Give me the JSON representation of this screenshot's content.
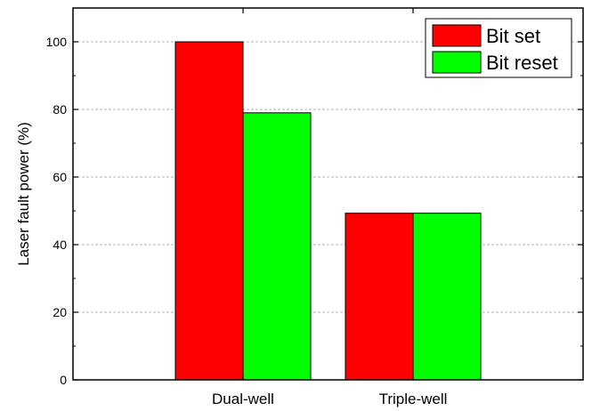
{
  "chart_data": {
    "type": "bar",
    "categories": [
      "Dual-well",
      "Triple-well"
    ],
    "series": [
      {
        "name": "Bit set",
        "values": [
          100,
          49.3
        ],
        "color": "#ff0000"
      },
      {
        "name": "Bit reset",
        "values": [
          79,
          49.3
        ],
        "color": "#00ff00"
      }
    ],
    "title": "",
    "xlabel": "",
    "ylabel": "Laser fault power (%)",
    "ylim": [
      0,
      110
    ],
    "yticks": [
      0,
      20,
      40,
      60,
      80,
      100
    ],
    "ytick_labels": [
      "0",
      "20",
      "40",
      "60",
      "80",
      "100"
    ],
    "grid": "horizontal dashed",
    "legend_position": "top-right"
  }
}
